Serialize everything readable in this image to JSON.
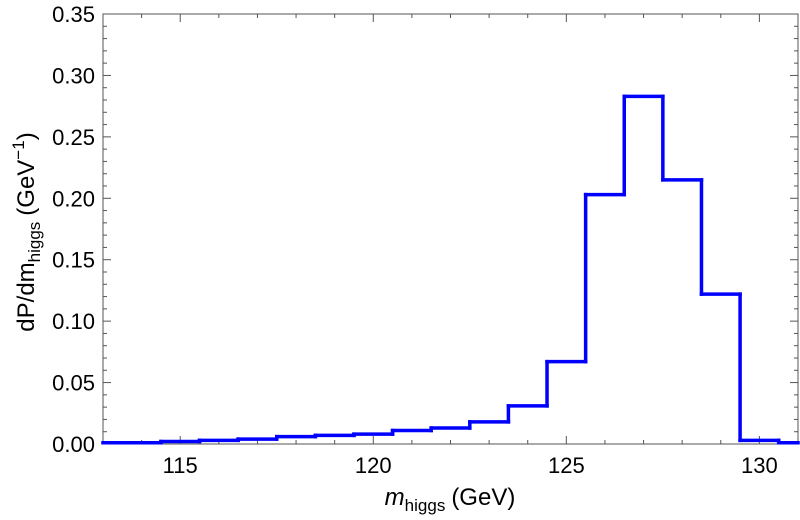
{
  "chart_data": {
    "type": "histogram",
    "xlabel": {
      "main": "m",
      "sub": "higgs",
      "unit": "(GeV)"
    },
    "ylabel": {
      "prefix": "dP/dm",
      "sub": "higgs",
      "unit_open": "(GeV",
      "exp": "−1",
      "unit_close": ")"
    },
    "xlim": [
      113,
      131
    ],
    "ylim": [
      0,
      0.35
    ],
    "xticks": [
      115,
      120,
      125,
      130
    ],
    "yticks": [
      0.0,
      0.05,
      0.1,
      0.15,
      0.2,
      0.25,
      0.3,
      0.35
    ],
    "ytick_labels": [
      "0.00",
      "0.05",
      "0.10",
      "0.15",
      "0.20",
      "0.25",
      "0.30",
      "0.35"
    ],
    "bin_edges": [
      113,
      113.5,
      114.5,
      115.5,
      116.5,
      117.5,
      118.5,
      119.5,
      120.5,
      121.5,
      122.5,
      123.5,
      124.5,
      125.5,
      126.5,
      127.5,
      128.5,
      129.5,
      130.5,
      131
    ],
    "values": [
      0.001,
      0.001,
      0.002,
      0.003,
      0.004,
      0.006,
      0.007,
      0.008,
      0.011,
      0.013,
      0.018,
      0.031,
      0.067,
      0.203,
      0.283,
      0.215,
      0.122,
      0.003,
      0.001
    ],
    "line_color": "#0000ff",
    "grid": false,
    "legend": "none"
  }
}
